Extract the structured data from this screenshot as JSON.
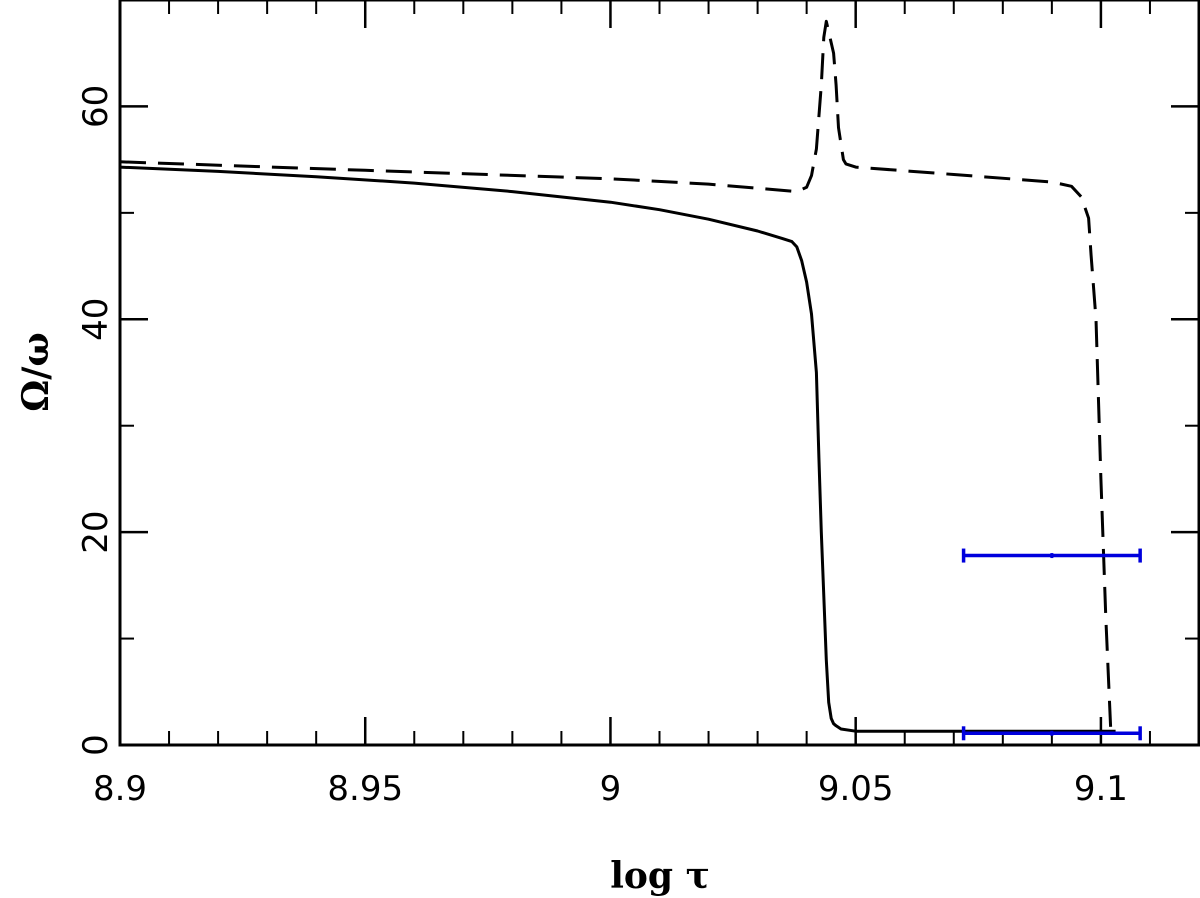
{
  "chart_data": {
    "type": "line",
    "title": "",
    "xlabel": "log τ",
    "ylabel": "Ω/ω",
    "xlim": [
      8.9,
      9.12
    ],
    "ylim": [
      0,
      70
    ],
    "grid": false,
    "legend": "none",
    "x_ticks": [
      8.9,
      8.95,
      9.0,
      9.05,
      9.1
    ],
    "x_tick_labels": [
      "8.9",
      "8.95",
      "9",
      "9.05",
      "9.1"
    ],
    "x_minor_step": 0.01,
    "y_ticks": [
      0,
      20,
      40,
      60
    ],
    "y_tick_labels": [
      "0",
      "20",
      "40",
      "60"
    ],
    "y_minor_step": 10,
    "series": [
      {
        "style": "solid",
        "color": "#000000",
        "x": [
          8.9,
          8.92,
          8.94,
          8.96,
          8.98,
          9.0,
          9.01,
          9.02,
          9.03,
          9.035,
          9.037,
          9.038,
          9.039,
          9.04,
          9.041,
          9.042,
          9.0425,
          9.043,
          9.0435,
          9.044,
          9.0445,
          9.045,
          9.0455,
          9.046,
          9.047,
          9.05,
          9.07,
          9.09,
          9.1,
          9.103
        ],
        "y": [
          54.3,
          53.9,
          53.4,
          52.8,
          52.0,
          51.0,
          50.3,
          49.4,
          48.3,
          47.6,
          47.3,
          46.8,
          45.5,
          43.5,
          40.5,
          35.0,
          27.0,
          20.0,
          14.0,
          8.0,
          4.0,
          2.5,
          2.0,
          1.8,
          1.5,
          1.3,
          1.3,
          1.3,
          1.3,
          1.3
        ]
      },
      {
        "style": "dashed",
        "color": "#000000",
        "x": [
          8.9,
          8.95,
          9.0,
          9.02,
          9.038,
          9.04,
          9.041,
          9.042,
          9.043,
          9.0435,
          9.044,
          9.0445,
          9.0455,
          9.046,
          9.0465,
          9.0475,
          9.048,
          9.05,
          9.07,
          9.09,
          9.094,
          9.096,
          9.0975,
          9.098,
          9.099,
          9.1,
          9.101,
          9.102
        ],
        "y": [
          54.8,
          54.0,
          53.2,
          52.7,
          52.0,
          52.4,
          53.5,
          56.0,
          62.0,
          66.5,
          68.0,
          67.0,
          65.0,
          62.0,
          58.0,
          55.0,
          54.6,
          54.3,
          53.6,
          52.9,
          52.5,
          51.5,
          49.5,
          46.0,
          40.0,
          25.0,
          12.0,
          1.5
        ]
      }
    ],
    "error_bars": [
      {
        "color": "#0000dd",
        "y": 17.8,
        "x_low": 9.072,
        "x_high": 9.108,
        "x_mid": 9.09
      },
      {
        "color": "#0000dd",
        "y": 1.1,
        "x_low": 9.072,
        "x_high": 9.108,
        "x_mid": 9.09
      }
    ]
  }
}
